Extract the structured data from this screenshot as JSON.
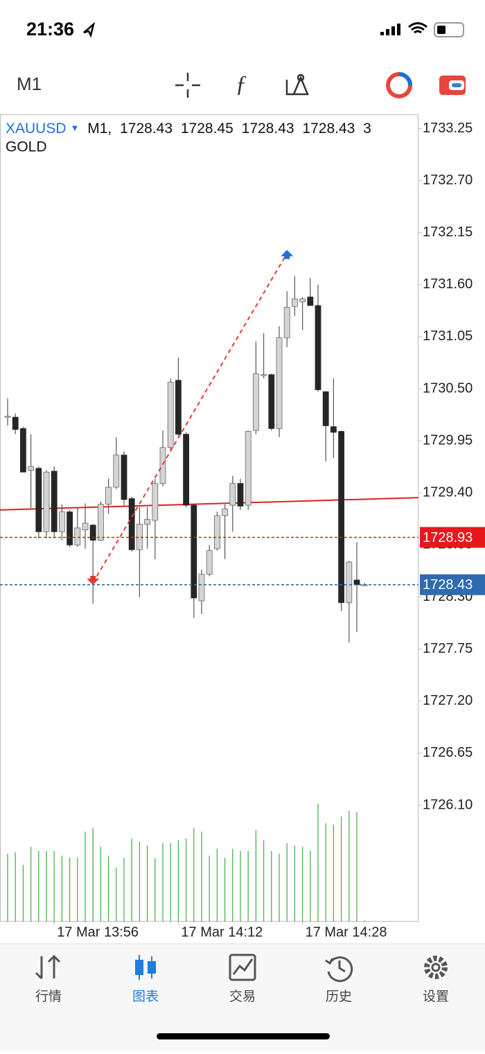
{
  "status_bar": {
    "time": "21:36"
  },
  "toolbar": {
    "timeframe": "M1"
  },
  "chart_data": {
    "type": "candlestick",
    "symbol": "XAUUSD",
    "header_timeframe": "M1,",
    "description": "GOLD",
    "categories": [
      null,
      null,
      null,
      null,
      null,
      null,
      "17 Mar 13:56",
      null,
      null,
      null,
      null,
      null,
      null,
      null,
      null,
      null,
      null,
      null,
      null,
      null,
      null,
      null,
      "17 Mar 14:12",
      null,
      null,
      null,
      null,
      null,
      null,
      null,
      null,
      null,
      null,
      null,
      null,
      null,
      null,
      null,
      "17 Mar 14:28",
      null,
      null,
      null,
      null,
      null,
      null,
      null,
      null
    ],
    "series": {
      "open": [
        1730.2,
        1730.2,
        1730.08,
        1729.64,
        1729.66,
        1728.99,
        1729.63,
        1728.99,
        1729.2,
        1728.85,
        1729.01,
        1729.06,
        1728.9,
        1729.28,
        1729.46,
        1729.8,
        1729.34,
        1728.8,
        1729.07,
        1729.11,
        1729.5,
        1729.88,
        1730.59,
        1730.02,
        1729.27,
        1728.26,
        1728.54,
        1728.81,
        1729.16,
        1729.27,
        1729.5,
        1729.27,
        1730.06,
        1730.65,
        1730.65,
        1730.08,
        1731.04,
        1731.37,
        1731.42,
        1731.47,
        1731.38,
        1730.47,
        1730.1,
        1730.05,
        1728.24,
        1728.48,
        1728.43
      ],
      "high": [
        1730.4,
        1730.24,
        1730.1,
        1730.02,
        1729.68,
        1729.64,
        1729.68,
        1729.28,
        1729.22,
        1729.25,
        1729.29,
        1729.07,
        1729.31,
        1729.55,
        1729.99,
        1729.84,
        1729.36,
        1729.25,
        1729.25,
        1729.55,
        1730.06,
        1730.61,
        1730.83,
        1730.04,
        1729.28,
        1728.59,
        1728.85,
        1729.2,
        1729.28,
        1729.58,
        1729.55,
        1730.06,
        1731.0,
        1731.09,
        1730.66,
        1731.16,
        1731.53,
        1731.69,
        1731.47,
        1731.67,
        1731.6,
        1730.47,
        1730.61,
        1730.06,
        1728.68,
        1728.88,
        1728.45
      ],
      "low": [
        1730.11,
        1730.02,
        1729.62,
        1729.24,
        1728.92,
        1728.92,
        1728.92,
        1728.9,
        1728.83,
        1728.83,
        1728.81,
        1728.23,
        1728.89,
        1729.18,
        1729.44,
        1729.27,
        1728.78,
        1728.3,
        1728.81,
        1728.7,
        1729.47,
        1729.84,
        1730.0,
        1729.25,
        1728.08,
        1728.12,
        1728.52,
        1728.79,
        1728.7,
        1728.99,
        1729.22,
        1729.22,
        1730.02,
        1730.61,
        1730.06,
        1729.99,
        1730.94,
        1731.27,
        1731.12,
        1731.38,
        1730.47,
        1729.73,
        1729.77,
        1728.15,
        1727.82,
        1727.93,
        1728.43
      ],
      "close": [
        1730.21,
        1730.07,
        1729.62,
        1729.68,
        1728.99,
        1729.62,
        1728.99,
        1729.2,
        1728.85,
        1729.03,
        1729.08,
        1728.9,
        1729.28,
        1729.46,
        1729.8,
        1729.33,
        1728.8,
        1729.07,
        1729.12,
        1729.5,
        1729.88,
        1730.57,
        1730.02,
        1729.27,
        1728.29,
        1728.54,
        1728.79,
        1729.16,
        1729.23,
        1729.5,
        1729.26,
        1730.05,
        1730.66,
        1730.65,
        1730.08,
        1731.04,
        1731.36,
        1731.45,
        1731.45,
        1731.38,
        1730.49,
        1730.11,
        1730.04,
        1728.24,
        1728.67,
        1728.43,
        1728.43
      ],
      "volume": [
        147,
        150,
        123,
        162,
        153,
        153,
        153,
        143,
        138,
        138,
        195,
        203,
        162,
        143,
        117,
        138,
        180,
        173,
        165,
        138,
        170,
        170,
        177,
        180,
        203,
        195,
        143,
        158,
        138,
        158,
        153,
        153,
        198,
        176,
        153,
        147,
        170,
        165,
        162,
        153,
        255,
        213,
        210,
        228,
        240,
        237,
        3
      ]
    },
    "bull_color": "#d4d4d4",
    "bear_color": "#262626",
    "volume_color": "#4caf50",
    "volume_lim": [
      0,
      300
    ],
    "ylim": [
      1724.87,
      1733.4
    ],
    "yticks": [
      1733.25,
      {
        "value": 1732.7,
        "label": "1732.70"
      },
      1732.15,
      {
        "value": 1731.6,
        "label": "1731.60"
      },
      1731.05,
      {
        "value": 1730.5,
        "label": "1730.50"
      },
      1729.95,
      {
        "value": 1729.4,
        "label": "1729.40"
      },
      1728.85,
      {
        "value": 1728.3,
        "label": "1728.30"
      },
      1727.75,
      {
        "value": 1727.2,
        "label": "1727.20"
      },
      1726.65,
      {
        "value": 1726.1,
        "label": "1726.10"
      }
    ],
    "trendline": {
      "start": 1729.22,
      "end": 1729.35,
      "color": "#e02020"
    },
    "arrow_line": {
      "from_index": 11,
      "from_value": 1728.45,
      "to_index": 36,
      "to_value": 1731.93,
      "color": "#e53935",
      "up_color": "#1e6fd9"
    },
    "ask": {
      "value": 1728.93,
      "color": "#e8171c"
    },
    "bid": {
      "value": 1728.43,
      "color": "#2e6bb0"
    }
  },
  "tabs": [
    "行情",
    "图表",
    "交易",
    "历史",
    "设置"
  ]
}
